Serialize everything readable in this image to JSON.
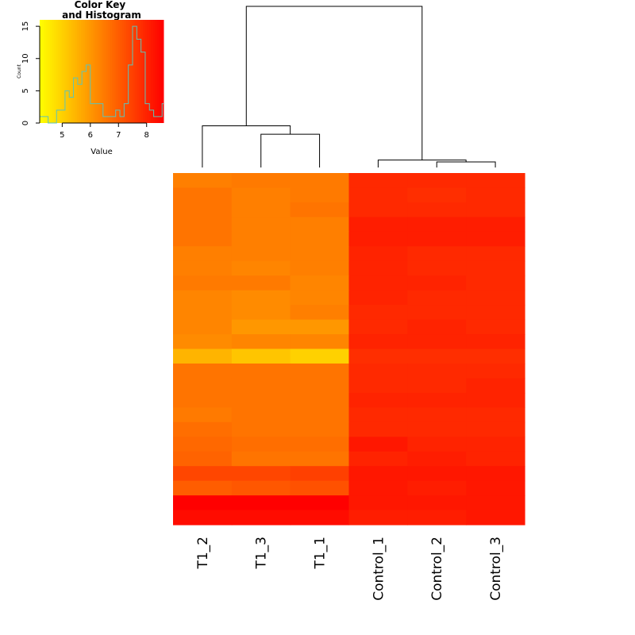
{
  "chart_data": {
    "type": "heatmap",
    "columns": [
      "T1_2",
      "T1_3",
      "T1_1",
      "Control_1",
      "Control_2",
      "Control_3"
    ],
    "color_scale": {
      "low": "#ffff00",
      "high": "#ff0000",
      "range": [
        4.2,
        8.6
      ]
    },
    "values": [
      [
        6.4,
        6.5,
        6.5,
        7.9,
        7.9,
        7.9
      ],
      [
        6.6,
        6.4,
        6.5,
        7.9,
        7.8,
        7.9
      ],
      [
        6.6,
        6.4,
        6.6,
        7.9,
        7.9,
        7.9
      ],
      [
        6.6,
        6.4,
        6.4,
        8.1,
        8.1,
        8.1
      ],
      [
        6.6,
        6.4,
        6.4,
        8.1,
        8.1,
        8.1
      ],
      [
        6.4,
        6.4,
        6.4,
        8.0,
        7.9,
        7.9
      ],
      [
        6.4,
        6.3,
        6.4,
        8.0,
        7.9,
        7.9
      ],
      [
        6.5,
        6.5,
        6.3,
        8.0,
        8.0,
        7.9
      ],
      [
        6.3,
        6.2,
        6.3,
        8.0,
        7.9,
        7.9
      ],
      [
        6.3,
        6.2,
        6.4,
        7.9,
        7.9,
        7.9
      ],
      [
        6.3,
        6.0,
        6.0,
        7.9,
        8.0,
        7.9
      ],
      [
        6.2,
        6.3,
        6.3,
        8.0,
        8.0,
        8.0
      ],
      [
        5.5,
        5.2,
        5.0,
        7.8,
        7.8,
        7.8
      ],
      [
        6.6,
        6.6,
        6.6,
        7.9,
        7.9,
        7.9
      ],
      [
        6.6,
        6.6,
        6.6,
        7.9,
        7.9,
        8.0
      ],
      [
        6.6,
        6.6,
        6.6,
        8.0,
        8.0,
        8.0
      ],
      [
        6.5,
        6.6,
        6.6,
        7.9,
        7.9,
        7.9
      ],
      [
        6.7,
        6.6,
        6.6,
        7.9,
        7.9,
        7.9
      ],
      [
        6.8,
        6.7,
        6.7,
        8.2,
        8.0,
        8.0
      ],
      [
        6.9,
        6.6,
        6.6,
        8.0,
        8.1,
        8.0
      ],
      [
        7.4,
        7.4,
        7.5,
        8.2,
        8.2,
        8.2
      ],
      [
        7.0,
        7.1,
        7.2,
        8.2,
        8.1,
        8.2
      ],
      [
        8.6,
        8.6,
        8.6,
        8.2,
        8.2,
        8.2
      ],
      [
        8.4,
        8.4,
        8.4,
        8.1,
        8.1,
        8.2
      ]
    ],
    "color_key": {
      "title": "Color Key\nand Histogram",
      "xlabel": "Value",
      "ylabel": "Count",
      "x_ticks": [
        5,
        6,
        7,
        8
      ],
      "y_ticks": [
        0,
        5,
        10,
        15
      ],
      "xlim": [
        4.2,
        8.6
      ],
      "ylim": [
        0,
        16
      ],
      "histogram": {
        "bin_edges": [
          4.2,
          4.35,
          4.5,
          4.65,
          4.8,
          4.95,
          5.1,
          5.25,
          5.4,
          5.55,
          5.7,
          5.85,
          6.0,
          6.15,
          6.3,
          6.45,
          6.6,
          6.75,
          6.9,
          7.05,
          7.2,
          7.35,
          7.5,
          7.65,
          7.8,
          7.95,
          8.1,
          8.25,
          8.4,
          8.55,
          8.6
        ],
        "counts": [
          1,
          1,
          0,
          0,
          2,
          2,
          5,
          4,
          7,
          6,
          8,
          9,
          3,
          3,
          3,
          1,
          1,
          1,
          2,
          1,
          3,
          9,
          15,
          13,
          11,
          3,
          2,
          1,
          1,
          3
        ]
      }
    },
    "dendrogram": {
      "columns": "top",
      "merges": [
        {
          "left": "Control_2",
          "right": "Control_3",
          "height": 0.05
        },
        {
          "left": "Control_1",
          "right": "Control_2+Control_3",
          "height": 0.08
        },
        {
          "left": "T1_3",
          "right": "T1_1",
          "height": 0.9
        },
        {
          "left": "T1_2",
          "right": "T1_3+T1_1",
          "height": 1.3
        },
        {
          "left": "T1",
          "right": "Control",
          "height": 11.5
        }
      ]
    }
  }
}
